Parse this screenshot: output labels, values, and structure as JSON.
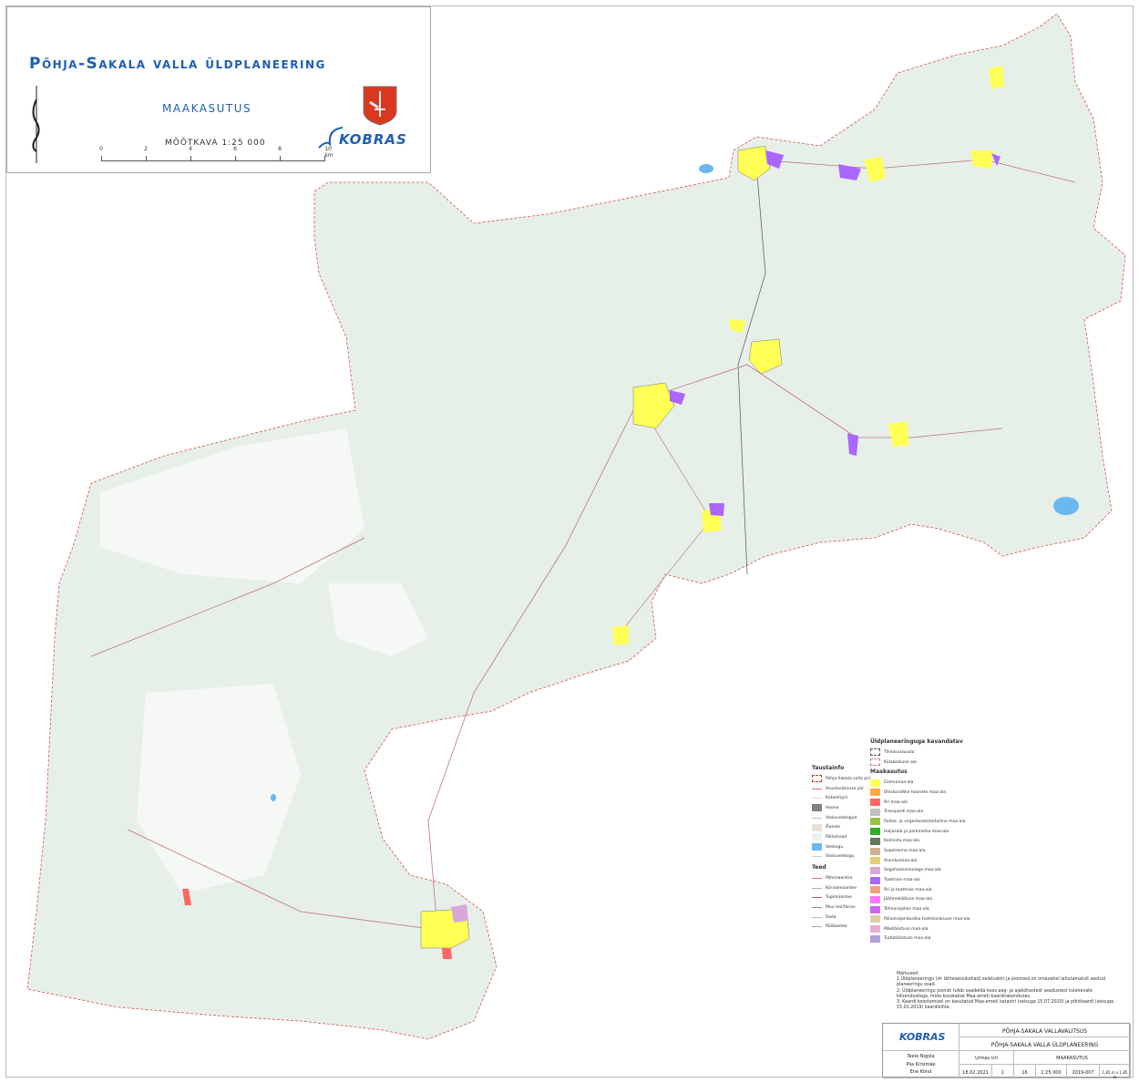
{
  "header": {
    "title": "Põhja-Sakala valla üldplaneering",
    "subtitle": "MAAKASUTUS",
    "scale_text": "MÕÕTKAVA 1:25 000",
    "scalebar_ticks": [
      "0",
      "2",
      "4",
      "6",
      "8",
      "10 km"
    ],
    "logo_text": "KOBRAS"
  },
  "legend": {
    "background_title": "Taustainfo",
    "background_items": [
      {
        "label": "Põhja-Sakala valla piir",
        "color": "#c0392b",
        "style": "dashed-box"
      },
      {
        "label": "Asustusüksuse piir",
        "color": "#e57373",
        "style": "dashed-line"
      },
      {
        "label": "Katastripiir",
        "color": "#dddddd",
        "style": "line"
      },
      {
        "label": "Hoone",
        "color": "#808080",
        "style": "fill"
      },
      {
        "label": "Vooluveekogud",
        "color": "#bbbbbb",
        "style": "line"
      },
      {
        "label": "Õueala",
        "color": "#e8e2da",
        "style": "fill"
      },
      {
        "label": "Põllumaad",
        "color": "#eaf3ec",
        "style": "fill"
      },
      {
        "label": "Veekogu",
        "color": "#6ab8f0",
        "style": "fill"
      },
      {
        "label": "Vooluveekogu",
        "color": "#a9d7f5",
        "style": "line"
      }
    ],
    "roads_title": "Teed",
    "roads": [
      {
        "label": "Põhimaantee",
        "color": "#c27a7a"
      },
      {
        "label": "Kõrvalmaantee",
        "color": "#bbaaaa"
      },
      {
        "label": "Tugimaantee",
        "color": "#a06060"
      },
      {
        "label": "Muu tee/tänav",
        "color": "#888"
      },
      {
        "label": "Rada",
        "color": "#bbb"
      },
      {
        "label": "Rööbastee",
        "color": "#aaa"
      }
    ],
    "planned_title": "Üldplaneeringuga kavandatav",
    "planned_items": [
      {
        "label": "Tiheasustusala",
        "color": "#555"
      },
      {
        "label": "Külakeskuse ala",
        "color": "#d08080"
      }
    ],
    "landuse_title": "Maakasutus",
    "landuse_items": [
      {
        "label": "Elamumaa-ala",
        "color": "#ffff55"
      },
      {
        "label": "Ühiskondlike hoonete maa-ala",
        "color": "#ffaa44"
      },
      {
        "label": "Äri maa-ala",
        "color": "#ff6666"
      },
      {
        "label": "Transpordi maa-ala",
        "color": "#c0c0c0"
      },
      {
        "label": "Puhke- ja virgestusotstarbeline maa-ala",
        "color": "#99c040"
      },
      {
        "label": "Haljasala ja parkmetsa maa-ala",
        "color": "#33aa33"
      },
      {
        "label": "Kalmistu maa-ala",
        "color": "#667755"
      },
      {
        "label": "Supelranna maa-ala",
        "color": "#d0b090"
      },
      {
        "label": "Aiandusmaa-ala",
        "color": "#e0d070"
      },
      {
        "label": "Segahoonestusega maa-ala",
        "color": "#d8a8d8"
      },
      {
        "label": "Tootmise maa-ala",
        "color": "#aa66ff"
      },
      {
        "label": "Äri ja tootmise maa-ala",
        "color": "#f0a080"
      },
      {
        "label": "Jäätmekäitluse maa-ala",
        "color": "#ff77ff"
      },
      {
        "label": "Tehnorajatise maa-ala",
        "color": "#cc66ee"
      },
      {
        "label": "Põllumajandusliku tootmisüksuse maa-ala",
        "color": "#d8d0a8"
      },
      {
        "label": "Mäetööstuse maa-ala",
        "color": "#e8b0d0"
      },
      {
        "label": "Turbatööstuse maa-ala",
        "color": "#b0a0d8"
      }
    ]
  },
  "notes": {
    "title": "Märkused:",
    "lines": [
      "1.Üldplaneeringu (sh lähteseisukohad) seletuskiri ja joonised on omavahel lahutamatult seotud planeeringu osad.",
      "2. Üldplaneeringu joonist tuleb vaadelda koos aeg- ja ajakohastest seadustest tulenevate kitsendustega, mida kuvatakse Maa-ameti kaardirakenduses.",
      "3. Kaardi koostamisel on kasutatud Maa-ameti katastri (seisuga 15.07.2020) ja põhikaardi (seisuga 15.01.2019) kaardikihte."
    ]
  },
  "title_block": {
    "client": "PÕHJA-SAKALA VALLAVALITSUS",
    "project": "PÕHJA-SAKALA VALLA ÜLDPLANEERING",
    "drawing": "MAAKASUTUS",
    "authors": [
      "Teele Nigola",
      "Piia Kirsimäe",
      "Ene Kõnd"
    ],
    "manager": "Urmas Uri",
    "date": "18.02.2021",
    "revision": "1",
    "sheet": "16",
    "scale": "1:25 000",
    "work_no": "2019-007",
    "size": "1,85 m x 1,85 m",
    "logo_text": "KOBRAS"
  }
}
